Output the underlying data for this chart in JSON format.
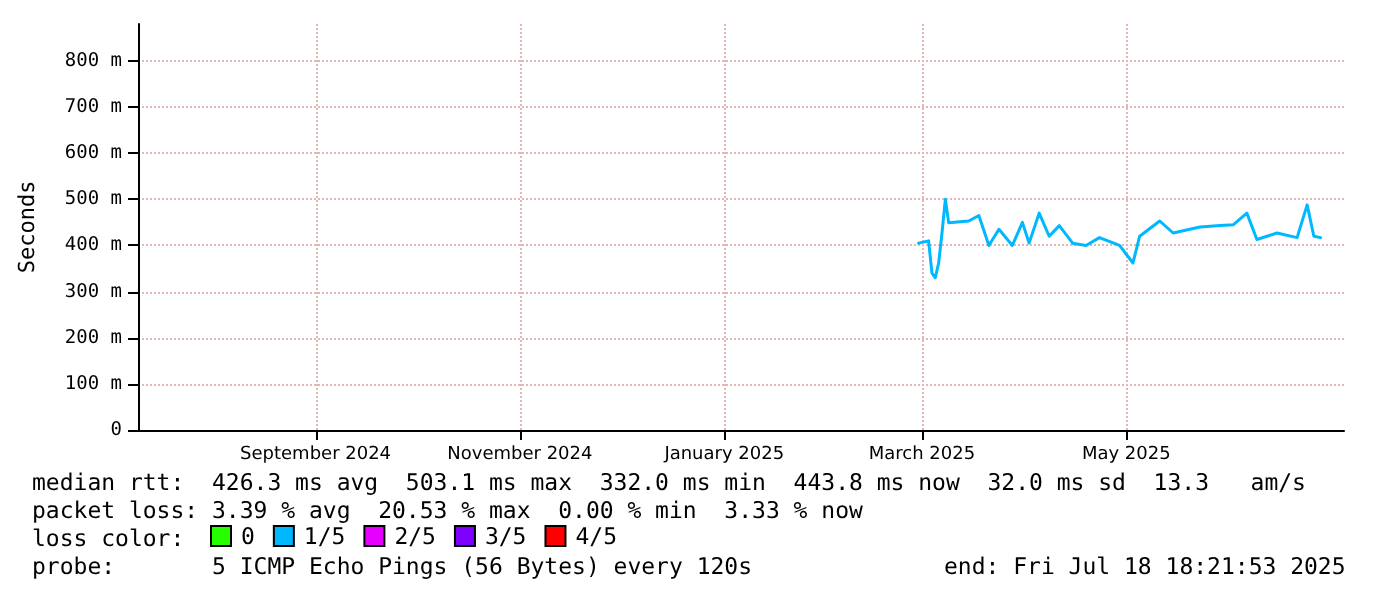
{
  "chart_data": {
    "type": "line",
    "ylabel": "Seconds",
    "xlim": [
      "2024-07-10",
      "2025-07-05"
    ],
    "xticks": [
      {
        "value": "2024-09-01",
        "label": "September 2024"
      },
      {
        "value": "2024-11-01",
        "label": "November 2024"
      },
      {
        "value": "2025-01-01",
        "label": "January 2025"
      },
      {
        "value": "2025-03-01",
        "label": "March 2025"
      },
      {
        "value": "2025-05-01",
        "label": "May 2025"
      }
    ],
    "ylim": [
      0,
      880
    ],
    "yticks": [
      0,
      {
        "value": 100,
        "label": "100 m"
      },
      {
        "value": 200,
        "label": "200 m"
      },
      {
        "value": 300,
        "label": "300 m"
      },
      {
        "value": 400,
        "label": "400 m"
      },
      {
        "value": 500,
        "label": "500 m"
      },
      {
        "value": 600,
        "label": "600 m"
      },
      {
        "value": 700,
        "label": "700 m"
      },
      {
        "value": 800,
        "label": "800 m"
      }
    ],
    "grid": true,
    "legend": "bottom left",
    "marker": "none",
    "line_style": "solid",
    "series": [
      {
        "color": "#00b8ff",
        "x": [
          "2025-02-28",
          "2025-03-03",
          "2025-03-04",
          "2025-03-05",
          "2025-03-06",
          "2025-03-07",
          "2025-03-08",
          "2025-03-09",
          "2025-03-15",
          "2025-03-18",
          "2025-03-21",
          "2025-03-24",
          "2025-03-28",
          "2025-03-31",
          "2025-04-02",
          "2025-04-05",
          "2025-04-08",
          "2025-04-11",
          "2025-04-15",
          "2025-04-19",
          "2025-04-23",
          "2025-04-29",
          "2025-05-03",
          "2025-05-05",
          "2025-05-11",
          "2025-05-15",
          "2025-05-23",
          "2025-05-29",
          "2025-06-02",
          "2025-06-06",
          "2025-06-09",
          "2025-06-15",
          "2025-06-21",
          "2025-06-24",
          "2025-06-26",
          "2025-06-28"
        ],
        "values": [
          405,
          410,
          340,
          330,
          362,
          427,
          500,
          449,
          453,
          465,
          400,
          435,
          400,
          450,
          405,
          470,
          420,
          443,
          405,
          400,
          417,
          400,
          362,
          420,
          453,
          427,
          440,
          443,
          445,
          470,
          413,
          427,
          417,
          488,
          420,
          417
        ]
      },
      {
        "name": "0",
        "color": "#26ff00"
      },
      {
        "name": "1/5",
        "color": "#00b8ff"
      },
      {
        "name": "2/5",
        "color": "#e600ff"
      },
      {
        "name": "3/5",
        "color": "#7e00ff"
      },
      {
        "name": "4/5",
        "color": "#ff0000"
      }
    ],
    "annotations": [
      "median rtt:  426.3 ms avg  503.1 ms max  332.0 ms min  443.8 ms now  32.0 ms sd  13.3   am/s",
      "packet loss: 3.39 % avg  20.53 % max  0.00 % min  3.33 % now",
      "loss color:",
      "probe:       5 ICMP Echo Pings (56 Bytes) every 120s",
      "end: Fri Jul 18 18:21:53 2025"
    ]
  }
}
